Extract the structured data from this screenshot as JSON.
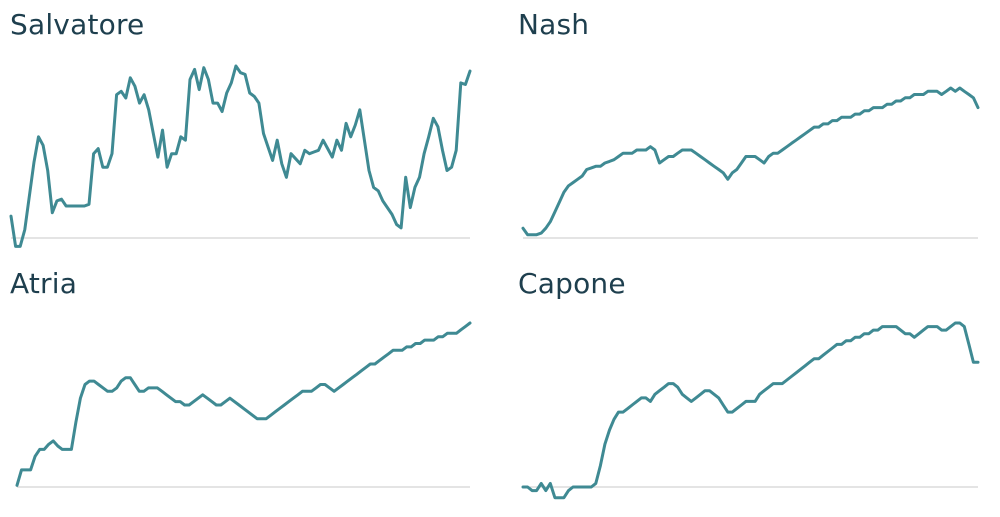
{
  "page": {
    "line_color": "#3f8a93",
    "title_color": "#1e3f4e",
    "baseline_color": "#c8c8c8"
  },
  "chart_data": [
    {
      "type": "line",
      "title": "Salvatore",
      "xlabel": "",
      "ylabel": "",
      "grid": false,
      "x": [
        0,
        1,
        2,
        3,
        4,
        5,
        6,
        7,
        8,
        9,
        10,
        11,
        12,
        13,
        14,
        15,
        16,
        17,
        18,
        19,
        20,
        21,
        22,
        23,
        24,
        25,
        26,
        27,
        28,
        29,
        30,
        31,
        32,
        33,
        34,
        35,
        36,
        37,
        38,
        39,
        40,
        41,
        42,
        43,
        44,
        45,
        46,
        47,
        48,
        49,
        50,
        51,
        52,
        53,
        54,
        55,
        56,
        57,
        58,
        59,
        60,
        61,
        62,
        63,
        64,
        65,
        66,
        67,
        68,
        69,
        70,
        71,
        72,
        73,
        74,
        75,
        76,
        77,
        78,
        79,
        80,
        81,
        82,
        83,
        84,
        85,
        86,
        87,
        88,
        89,
        90,
        91,
        92,
        93,
        94,
        95,
        96,
        97,
        98,
        99,
        100
      ],
      "series": [
        {
          "values": [
            13,
            -5,
            -5,
            5,
            25,
            45,
            60,
            55,
            40,
            15,
            22,
            23,
            19,
            19,
            19,
            19,
            19,
            20,
            50,
            53,
            42,
            42,
            50,
            85,
            87,
            83,
            95,
            90,
            80,
            85,
            76,
            62,
            48,
            64,
            42,
            50,
            50,
            60,
            58,
            94,
            100,
            88,
            101,
            94,
            80,
            80,
            75,
            86,
            92,
            102,
            98,
            97,
            86,
            84,
            80,
            62,
            54,
            46,
            58,
            44,
            36,
            50,
            47,
            44,
            52,
            50,
            51,
            52,
            58,
            53,
            48,
            58,
            52,
            68,
            60,
            67,
            76,
            58,
            40,
            30,
            28,
            22,
            18,
            14,
            8,
            6,
            36,
            18,
            30,
            36,
            50,
            60,
            71,
            66,
            52,
            40,
            42,
            52,
            92,
            91,
            99
          ]
        }
      ]
    },
    {
      "type": "line",
      "title": "Nash",
      "xlabel": "",
      "ylabel": "",
      "grid": false,
      "x": [
        0,
        1,
        2,
        3,
        4,
        5,
        6,
        7,
        8,
        9,
        10,
        11,
        12,
        13,
        14,
        15,
        16,
        17,
        18,
        19,
        20,
        21,
        22,
        23,
        24,
        25,
        26,
        27,
        28,
        29,
        30,
        31,
        32,
        33,
        34,
        35,
        36,
        37,
        38,
        39,
        40,
        41,
        42,
        43,
        44,
        45,
        46,
        47,
        48,
        49,
        50,
        51,
        52,
        53,
        54,
        55,
        56,
        57,
        58,
        59,
        60,
        61,
        62,
        63,
        64,
        65,
        66,
        67,
        68,
        69,
        70,
        71,
        72,
        73,
        74,
        75,
        76,
        77,
        78,
        79,
        80,
        81,
        82,
        83,
        84,
        85,
        86,
        87,
        88,
        89,
        90,
        91,
        92,
        93,
        94,
        95,
        96,
        97,
        98,
        99,
        100
      ],
      "series": [
        {
          "values": [
            6,
            2,
            2,
            2,
            3,
            6,
            10,
            16,
            22,
            28,
            32,
            34,
            36,
            38,
            42,
            43,
            44,
            44,
            46,
            47,
            48,
            50,
            52,
            52,
            52,
            54,
            54,
            54,
            56,
            54,
            46,
            48,
            50,
            50,
            52,
            54,
            54,
            54,
            52,
            50,
            48,
            46,
            44,
            42,
            40,
            36,
            40,
            42,
            46,
            50,
            50,
            50,
            48,
            46,
            50,
            52,
            52,
            54,
            56,
            58,
            60,
            62,
            64,
            66,
            68,
            68,
            70,
            70,
            72,
            72,
            74,
            74,
            74,
            76,
            76,
            78,
            78,
            80,
            80,
            80,
            82,
            82,
            84,
            84,
            86,
            86,
            88,
            88,
            88,
            90,
            90,
            90,
            88,
            90,
            92,
            90,
            92,
            90,
            88,
            86,
            80
          ]
        }
      ]
    },
    {
      "type": "line",
      "title": "Atria",
      "xlabel": "",
      "ylabel": "",
      "grid": false,
      "x": [
        0,
        1,
        2,
        3,
        4,
        5,
        6,
        7,
        8,
        9,
        10,
        11,
        12,
        13,
        14,
        15,
        16,
        17,
        18,
        19,
        20,
        21,
        22,
        23,
        24,
        25,
        26,
        27,
        28,
        29,
        30,
        31,
        32,
        33,
        34,
        35,
        36,
        37,
        38,
        39,
        40,
        41,
        42,
        43,
        44,
        45,
        46,
        47,
        48,
        49,
        50,
        51,
        52,
        53,
        54,
        55,
        56,
        57,
        58,
        59,
        60,
        61,
        62,
        63,
        64,
        65,
        66,
        67,
        68,
        69,
        70,
        71,
        72,
        73,
        74,
        75,
        76,
        77,
        78,
        79,
        80,
        81,
        82,
        83,
        84,
        85,
        86,
        87,
        88,
        89,
        90,
        91,
        92,
        93,
        94,
        95,
        96,
        97,
        98,
        99,
        100
      ],
      "series": [
        {
          "values": [
            1,
            10,
            10,
            10,
            18,
            22,
            22,
            25,
            27,
            24,
            22,
            22,
            22,
            38,
            52,
            60,
            62,
            62,
            60,
            58,
            56,
            56,
            58,
            62,
            64,
            64,
            60,
            56,
            56,
            58,
            58,
            58,
            56,
            54,
            52,
            50,
            50,
            48,
            48,
            50,
            52,
            54,
            52,
            50,
            48,
            48,
            50,
            52,
            50,
            48,
            46,
            44,
            42,
            40,
            40,
            40,
            42,
            44,
            46,
            48,
            50,
            52,
            54,
            56,
            56,
            56,
            58,
            60,
            60,
            58,
            56,
            58,
            60,
            62,
            64,
            66,
            68,
            70,
            72,
            72,
            74,
            76,
            78,
            80,
            80,
            80,
            82,
            82,
            84,
            84,
            86,
            86,
            86,
            88,
            88,
            90,
            90,
            90,
            92,
            94,
            96
          ]
        }
      ]
    },
    {
      "type": "line",
      "title": "Capone",
      "xlabel": "",
      "ylabel": "",
      "grid": false,
      "x": [
        0,
        1,
        2,
        3,
        4,
        5,
        6,
        7,
        8,
        9,
        10,
        11,
        12,
        13,
        14,
        15,
        16,
        17,
        18,
        19,
        20,
        21,
        22,
        23,
        24,
        25,
        26,
        27,
        28,
        29,
        30,
        31,
        32,
        33,
        34,
        35,
        36,
        37,
        38,
        39,
        40,
        41,
        42,
        43,
        44,
        45,
        46,
        47,
        48,
        49,
        50,
        51,
        52,
        53,
        54,
        55,
        56,
        57,
        58,
        59,
        60,
        61,
        62,
        63,
        64,
        65,
        66,
        67,
        68,
        69,
        70,
        71,
        72,
        73,
        74,
        75,
        76,
        77,
        78,
        79,
        80,
        81,
        82,
        83,
        84,
        85,
        86,
        87,
        88,
        89,
        90,
        91,
        92,
        93,
        94,
        95,
        96,
        97,
        98,
        99,
        100
      ],
      "series": [
        {
          "values": [
            0,
            0,
            -2,
            -2,
            2,
            -2,
            2,
            -6,
            -6,
            -6,
            -2,
            0,
            0,
            0,
            0,
            0,
            2,
            12,
            24,
            32,
            38,
            42,
            42,
            44,
            46,
            48,
            50,
            50,
            48,
            52,
            54,
            56,
            58,
            58,
            56,
            52,
            50,
            48,
            50,
            52,
            54,
            54,
            52,
            50,
            46,
            42,
            42,
            44,
            46,
            48,
            48,
            48,
            52,
            54,
            56,
            58,
            58,
            58,
            60,
            62,
            64,
            66,
            68,
            70,
            72,
            72,
            74,
            76,
            78,
            80,
            80,
            82,
            82,
            84,
            84,
            86,
            86,
            88,
            88,
            90,
            90,
            90,
            90,
            88,
            86,
            86,
            84,
            86,
            88,
            90,
            90,
            90,
            88,
            88,
            90,
            92,
            92,
            90,
            80,
            70,
            70
          ]
        }
      ]
    }
  ]
}
